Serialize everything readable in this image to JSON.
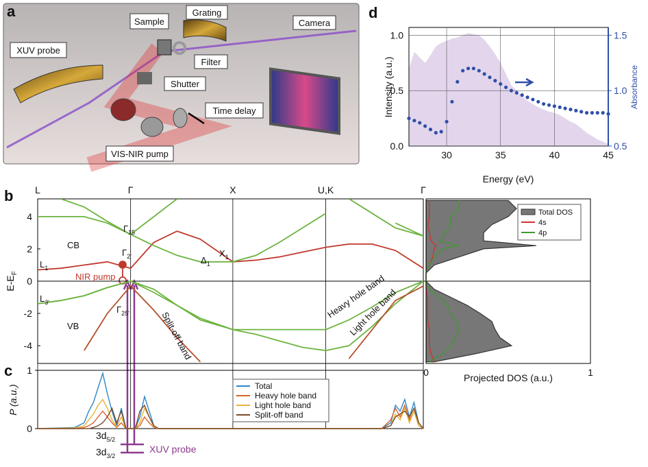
{
  "illustration": {
    "panel": "a",
    "labels": [
      "XUV probe",
      "Sample",
      "Grating",
      "Camera",
      "Filter",
      "Shutter",
      "Time delay",
      "VIS-NIR pump"
    ]
  },
  "chart_data": [
    {
      "type": "line",
      "panel": "d",
      "xlabel": "Energy (eV)",
      "ylabel": "Intensity (a.u.)",
      "y2label": "Absorbance",
      "x": [
        26.5,
        27,
        27.5,
        28,
        28.5,
        29,
        29.5,
        30,
        30.5,
        31,
        31.5,
        32,
        32.5,
        33,
        33.5,
        34,
        34.5,
        35,
        35.5,
        36,
        36.5,
        37,
        37.5,
        38,
        38.5,
        39,
        39.5,
        40,
        40.5,
        41,
        41.5,
        42,
        42.5,
        43,
        43.5,
        44,
        44.5,
        45
      ],
      "series": [
        {
          "style": "area",
          "color": "#e3d6ec",
          "values": [
            0.7,
            0.85,
            0.8,
            0.75,
            0.82,
            0.9,
            0.93,
            0.95,
            0.97,
            0.98,
            1.0,
            1.02,
            1.01,
            1.0,
            0.96,
            0.9,
            0.83,
            0.75,
            0.65,
            0.55,
            0.5,
            0.45,
            0.41,
            0.38,
            0.35,
            0.33,
            0.31,
            0.3,
            0.28,
            0.25,
            0.22,
            0.2,
            0.16,
            0.12,
            0.09,
            0.06,
            0.04,
            0.02
          ]
        },
        {
          "style": "dots",
          "axis": "y2",
          "color": "#2f4fa8",
          "values": [
            0.75,
            0.73,
            0.71,
            0.68,
            0.65,
            0.62,
            0.63,
            0.72,
            0.9,
            1.08,
            1.18,
            1.2,
            1.2,
            1.18,
            1.15,
            1.12,
            1.09,
            1.06,
            1.03,
            1.0,
            0.98,
            0.96,
            0.94,
            0.92,
            0.9,
            0.88,
            0.87,
            0.86,
            0.85,
            0.84,
            0.83,
            0.82,
            0.81,
            0.8,
            0.8,
            0.8,
            0.8,
            0.79
          ]
        }
      ],
      "xlim": [
        26.5,
        45
      ],
      "xticks": [
        30,
        35,
        40,
        45
      ],
      "ylim": [
        0,
        1.07
      ],
      "yticks": [
        {
          "value": 0,
          "label": "0.0"
        },
        {
          "value": 0.5,
          "label": "0.5"
        },
        {
          "value": 1,
          "label": "1.0"
        }
      ],
      "y2lim": [
        0.5,
        1.57
      ],
      "y2ticks": [
        {
          "value": 0.5,
          "label": "0.5"
        },
        {
          "value": 1,
          "label": "1.0"
        },
        {
          "value": 1.5,
          "label": "1.5"
        }
      ],
      "y2color": "#2f4fa8",
      "grid": true
    },
    {
      "type": "bands",
      "panel": "b",
      "ylabel": {
        "base": "E-E",
        "sub": "F"
      },
      "x": [
        0,
        0.25,
        0.5,
        0.75,
        1,
        1.25,
        1.5,
        1.75,
        2.1,
        2.35,
        2.6,
        2.85,
        3.1,
        3.35,
        3.6,
        3.85,
        4.15
      ],
      "series": [
        {
          "color": "#6cb33f",
          "values": [
            -1.4,
            -1.2,
            -0.9,
            -0.4,
            0,
            -0.5,
            -1.5,
            -2.4,
            -3.0,
            -3.0,
            -3.0,
            -3.0,
            -3.0,
            -2.4,
            -1.6,
            -0.7,
            0
          ]
        },
        {
          "color": "#6cb33f",
          "values": [
            -1.4,
            -1.2,
            -0.9,
            -0.4,
            0,
            -0.7,
            -1.5,
            -2.3,
            -3.0,
            -3.3,
            -3.7,
            -4.1,
            -4.3,
            -4.0,
            -2.8,
            -1.4,
            0
          ]
        },
        {
          "color": "#b5502a",
          "values": [
            null,
            null,
            -4.3,
            -2.0,
            -0.3,
            -1.8,
            -3.5,
            -5.0,
            null,
            null,
            null,
            null,
            null,
            -4.8,
            -3.0,
            -1.2,
            -0.3
          ]
        },
        {
          "color": "#c0392b",
          "values": [
            0.7,
            0.8,
            1.0,
            1.2,
            0.8,
            2.4,
            3.1,
            2.6,
            1.2,
            1.3,
            1.5,
            1.8,
            2.1,
            2.3,
            2.3,
            1.9,
            0.8
          ]
        },
        {
          "color": "#6cb33f",
          "values": [
            4.0,
            4.0,
            4.0,
            3.6,
            2.9,
            2.2,
            1.6,
            1.2,
            1.2,
            1.6,
            2.4,
            3.3,
            4.2,
            null,
            null,
            3.6,
            2.8
          ]
        },
        {
          "color": "#6cb33f",
          "values": [
            null,
            5.1,
            4.6,
            3.7,
            2.9,
            4.0,
            5.1,
            null,
            null,
            null,
            null,
            null,
            null,
            5.1,
            4.2,
            3.3,
            2.8
          ]
        }
      ],
      "xlim": [
        0,
        4.15
      ],
      "xticks": [
        {
          "value": 0,
          "label": "L"
        },
        {
          "value": 1,
          "label": "Γ"
        },
        {
          "value": 2.1,
          "label": "X"
        },
        {
          "value": 3.1,
          "label": "U,K"
        },
        {
          "value": 4.15,
          "label": "Γ"
        }
      ],
      "ylim": [
        -5.1,
        5.1
      ],
      "yticks": [
        -4,
        -2,
        0,
        2,
        4
      ],
      "annotations": [
        {
          "base": "CB"
        },
        {
          "base": "VB"
        },
        {
          "base": "L",
          "sub": "1"
        },
        {
          "base": "L",
          "sub": "3'"
        },
        {
          "base": "Γ",
          "sub": "15"
        },
        {
          "base": "Γ",
          "sub": "2'"
        },
        {
          "base": "Γ",
          "sub": "25'"
        },
        {
          "base": "Δ",
          "sub": "1"
        },
        {
          "base": "X",
          "sub": "1"
        },
        {
          "base": "NIR pump"
        },
        {
          "base": "Split-off band"
        },
        {
          "base": "Heavy hole band"
        },
        {
          "base": "Light hole band"
        }
      ]
    },
    {
      "type": "dos",
      "xlabel": "Projected DOS (a.u.)",
      "energy": [
        -5,
        -4.5,
        -4,
        -3.5,
        -3,
        -2.5,
        -2,
        -1.5,
        -1,
        -0.5,
        0,
        0.5,
        1,
        1.5,
        2,
        2.2,
        2.5,
        3,
        3.5,
        4,
        4.5,
        5
      ],
      "series": [
        {
          "name": "Total DOS",
          "style": "area",
          "color": "#777777",
          "values": [
            0.05,
            0.3,
            0.52,
            0.45,
            0.42,
            0.4,
            0.33,
            0.25,
            0.15,
            0.05,
            0,
            0,
            0.05,
            0.2,
            0.35,
            0.67,
            0.35,
            0.35,
            0.4,
            0.5,
            0.55,
            0.5
          ]
        },
        {
          "name": "4s",
          "color": "#d0312d",
          "values": [
            0.05,
            0.03,
            0.02,
            0.02,
            0.02,
            0.01,
            0.01,
            0.01,
            0.01,
            0,
            0,
            0,
            0.02,
            0.04,
            0.05,
            0.06,
            0.03,
            0.02,
            0.01,
            0.02,
            0.02,
            0.02
          ]
        },
        {
          "name": "4p",
          "color": "#3f9a2f",
          "values": [
            0.02,
            0.1,
            0.15,
            0.18,
            0.2,
            0.18,
            0.15,
            0.13,
            0.08,
            0.02,
            0,
            0,
            0.02,
            0.05,
            0.1,
            0.2,
            0.08,
            0.12,
            0.15,
            0.15,
            0.2,
            0.2
          ]
        }
      ],
      "xlim": [
        0,
        1
      ],
      "xticks": [
        0,
        1
      ],
      "ylim": [
        -5.1,
        5.1
      ]
    },
    {
      "type": "line",
      "panel": "c",
      "ylabel": "P (a.u.)",
      "x": [
        0,
        0.4,
        0.5,
        0.55,
        0.6,
        0.65,
        0.7,
        0.75,
        0.8,
        0.85,
        0.9,
        0.95,
        1.05,
        1.1,
        1.15,
        1.2,
        1.25,
        1.3,
        3.7,
        3.8,
        3.85,
        3.9,
        3.95,
        4.0,
        4.05,
        4.1,
        4.15
      ],
      "series": [
        {
          "name": "Total",
          "color": "#2e86c8",
          "values": [
            0,
            0.02,
            0.1,
            0.3,
            0.45,
            0.7,
            0.95,
            0.6,
            0.3,
            0.05,
            0.35,
            0,
            0,
            0.2,
            0.55,
            0.3,
            0.05,
            0,
            0,
            0.1,
            0.4,
            0.3,
            0.5,
            0.2,
            0.45,
            0.1,
            0
          ]
        },
        {
          "name": "Heavy hole band",
          "color": "#d9622b",
          "values": [
            0,
            0,
            0.02,
            0.05,
            0.1,
            0.2,
            0.3,
            0.2,
            0.1,
            0.02,
            0.1,
            0,
            0,
            0.05,
            0.2,
            0.1,
            0.02,
            0,
            0,
            0.15,
            0.35,
            0.2,
            0.4,
            0.15,
            0.3,
            0.05,
            0
          ]
        },
        {
          "name": "Light hole band",
          "color": "#e7b236",
          "values": [
            0,
            0.01,
            0.05,
            0.15,
            0.25,
            0.4,
            0.5,
            0.35,
            0.15,
            0.03,
            0.2,
            0,
            0,
            0.1,
            0.35,
            0.2,
            0.03,
            0,
            0,
            0.05,
            0.25,
            0.15,
            0.35,
            0.1,
            0.3,
            0.05,
            0
          ]
        },
        {
          "name": "Split-off band",
          "color": "#7a4a2a",
          "values": [
            0,
            0,
            0,
            0,
            0.02,
            0.05,
            0.1,
            0.2,
            0.35,
            0.1,
            0.3,
            0,
            0,
            0.3,
            0.4,
            0.2,
            0.05,
            0,
            0,
            0.05,
            0.2,
            0.25,
            0.3,
            0.2,
            0.35,
            0.1,
            0
          ]
        }
      ],
      "xlim": [
        0,
        4.15
      ],
      "ylim": [
        0,
        1
      ],
      "yticks": [
        0,
        1
      ],
      "annotations": [
        {
          "base": "3d",
          "sub": "5/2"
        },
        {
          "base": "3d",
          "sub": "3/2"
        },
        {
          "base": "XUV probe"
        }
      ]
    }
  ]
}
